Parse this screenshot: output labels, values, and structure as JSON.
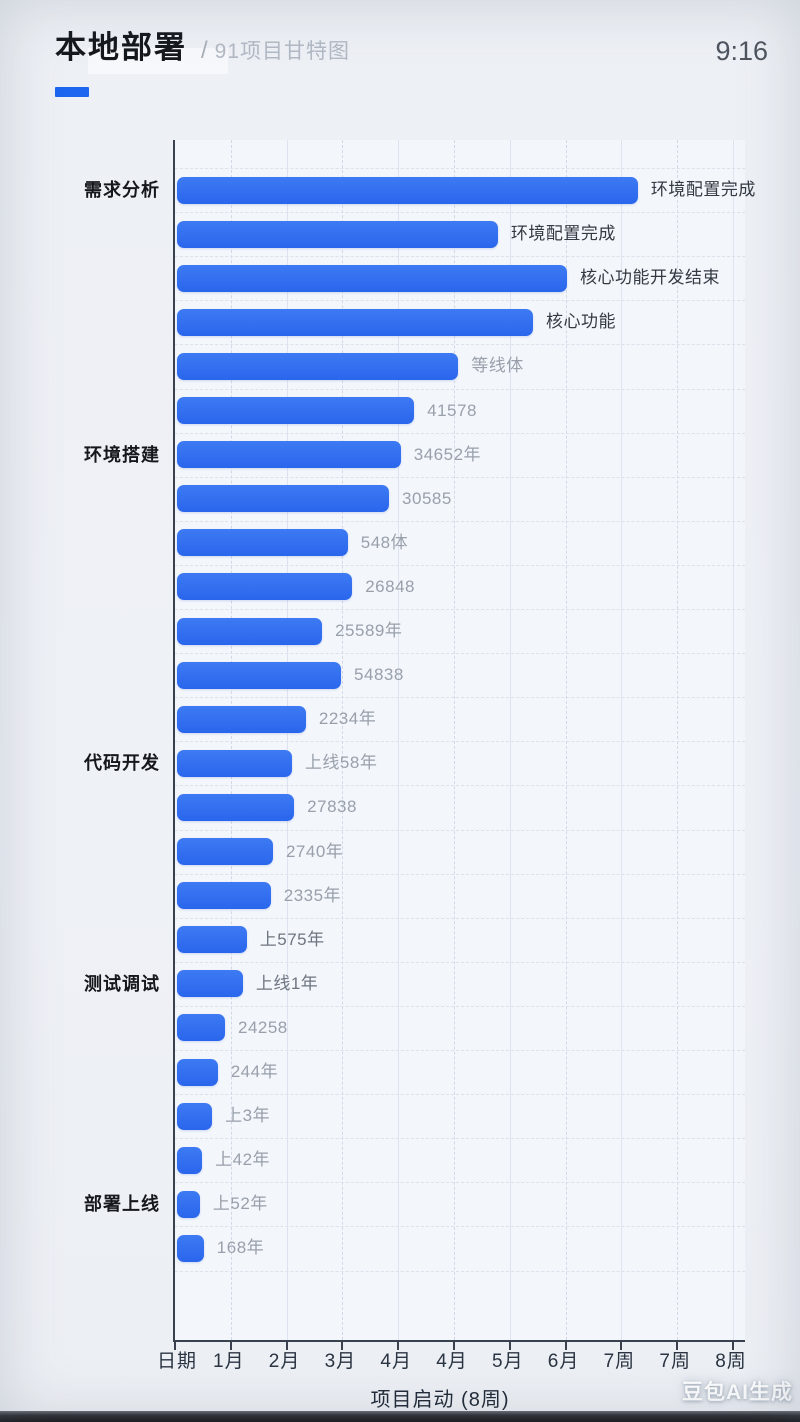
{
  "header": {
    "title": "本地部署",
    "separator": "/",
    "subtitle": "91项目甘特图",
    "time": "9:16"
  },
  "watermark": "豆包AI生成",
  "colors": {
    "accent": "#1d66f0",
    "bar": "#2d6cf0",
    "axis": "#39414f",
    "background": "#edf0f5",
    "label_dark": "#343a42",
    "label_medium": "#6e7580",
    "label_gray": "#99a0ab"
  },
  "chart_data": {
    "type": "bar",
    "orientation": "horizontal",
    "title": "本地部署 项目甘特图",
    "xlabel": "项目启动 (8周)",
    "ylabel": "",
    "xlim": [
      0,
      10
    ],
    "grid": true,
    "x_ticks": [
      "日期",
      "1月",
      "2月",
      "3月",
      "4月",
      "4月",
      "5月",
      "6月",
      "7周",
      "7周",
      "8周"
    ],
    "group_labels": [
      {
        "label": "需求分析",
        "row": 0
      },
      {
        "label": "环境搭建",
        "row": 6
      },
      {
        "label": "代码开发",
        "row": 13
      },
      {
        "label": "测试调试",
        "row": 18
      },
      {
        "label": "部署上线",
        "row": 23
      }
    ],
    "bars": [
      {
        "label": "环境配置完成",
        "value": 8.26,
        "tone": "dark"
      },
      {
        "label": "环境配置完成",
        "value": 5.75,
        "tone": "dark"
      },
      {
        "label": "核心功能开发结束",
        "value": 6.99,
        "tone": "dark"
      },
      {
        "label": "核心功能",
        "value": 6.38,
        "tone": "dark"
      },
      {
        "label": "等线体",
        "value": 5.04,
        "tone": "gray"
      },
      {
        "label": "41578",
        "value": 4.25,
        "tone": "gray"
      },
      {
        "label": "34652年",
        "value": 4.01,
        "tone": "gray"
      },
      {
        "label": "30585",
        "value": 3.8,
        "tone": "gray"
      },
      {
        "label": "548体",
        "value": 3.06,
        "tone": "gray"
      },
      {
        "label": "26848",
        "value": 3.14,
        "tone": "gray"
      },
      {
        "label": "25589年",
        "value": 2.6,
        "tone": "gray"
      },
      {
        "label": "54838",
        "value": 2.94,
        "tone": "gray"
      },
      {
        "label": "2234年",
        "value": 2.31,
        "tone": "gray"
      },
      {
        "label": "上线58年",
        "value": 2.06,
        "tone": "gray"
      },
      {
        "label": "27838",
        "value": 2.1,
        "tone": "gray"
      },
      {
        "label": "2740年",
        "value": 1.72,
        "tone": "gray"
      },
      {
        "label": "2335年",
        "value": 1.68,
        "tone": "gray"
      },
      {
        "label": "上575年",
        "value": 1.25,
        "tone": "medium"
      },
      {
        "label": "上线1年",
        "value": 1.18,
        "tone": "medium"
      },
      {
        "label": "24258",
        "value": 0.86,
        "tone": "gray"
      },
      {
        "label": "244年",
        "value": 0.73,
        "tone": "gray"
      },
      {
        "label": "上3年",
        "value": 0.63,
        "tone": "gray"
      },
      {
        "label": "上42年",
        "value": 0.45,
        "tone": "gray"
      },
      {
        "label": "上52年",
        "value": 0.41,
        "tone": "gray"
      },
      {
        "label": "168年",
        "value": 0.48,
        "tone": "gray"
      }
    ]
  }
}
